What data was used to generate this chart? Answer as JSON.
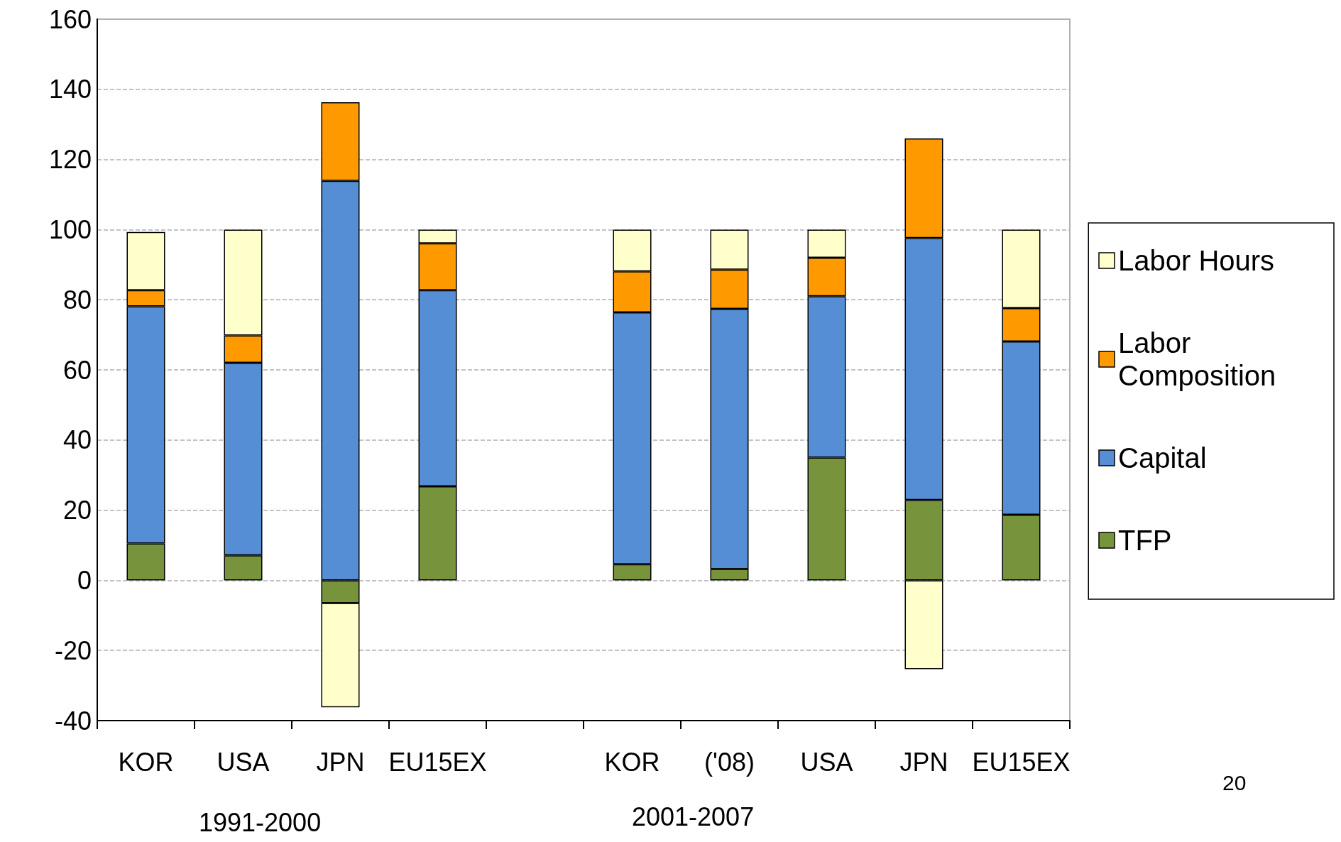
{
  "chart_data": {
    "type": "bar",
    "stacked": true,
    "categories": [
      "KOR",
      "USA",
      "JPN",
      "EU15EX",
      null,
      "KOR",
      "('08)",
      "USA",
      "JPN",
      "EU15EX"
    ],
    "series": [
      {
        "name": "TFP",
        "color": "#77933c",
        "values": [
          10.5,
          7.1,
          -6.5,
          26.8,
          null,
          4.6,
          3.2,
          35,
          22.9,
          18.7
        ]
      },
      {
        "name": "Capital",
        "color": "#558ed5",
        "values": [
          67.6,
          54.9,
          113.9,
          55.9,
          null,
          71.8,
          74.2,
          46,
          74.7,
          49.4
        ]
      },
      {
        "name": "Labor Composition",
        "color": "#ff9900",
        "values": [
          4.6,
          7.8,
          22.4,
          13.4,
          null,
          11.7,
          11.2,
          11,
          28.4,
          9.5
        ]
      },
      {
        "name": "Labor Hours",
        "color": "#ffffcc",
        "values": [
          16.6,
          30.2,
          -29.7,
          3.9,
          null,
          11.9,
          11.4,
          8,
          -25.3,
          22.4
        ]
      }
    ],
    "ylim": [
      -40,
      160
    ],
    "yticks": [
      -40,
      -20,
      0,
      20,
      40,
      60,
      80,
      100,
      120,
      140,
      160
    ],
    "grid": "y",
    "legend": "right",
    "annotations": [
      "1991-2000",
      "2001-2007",
      "20"
    ]
  }
}
